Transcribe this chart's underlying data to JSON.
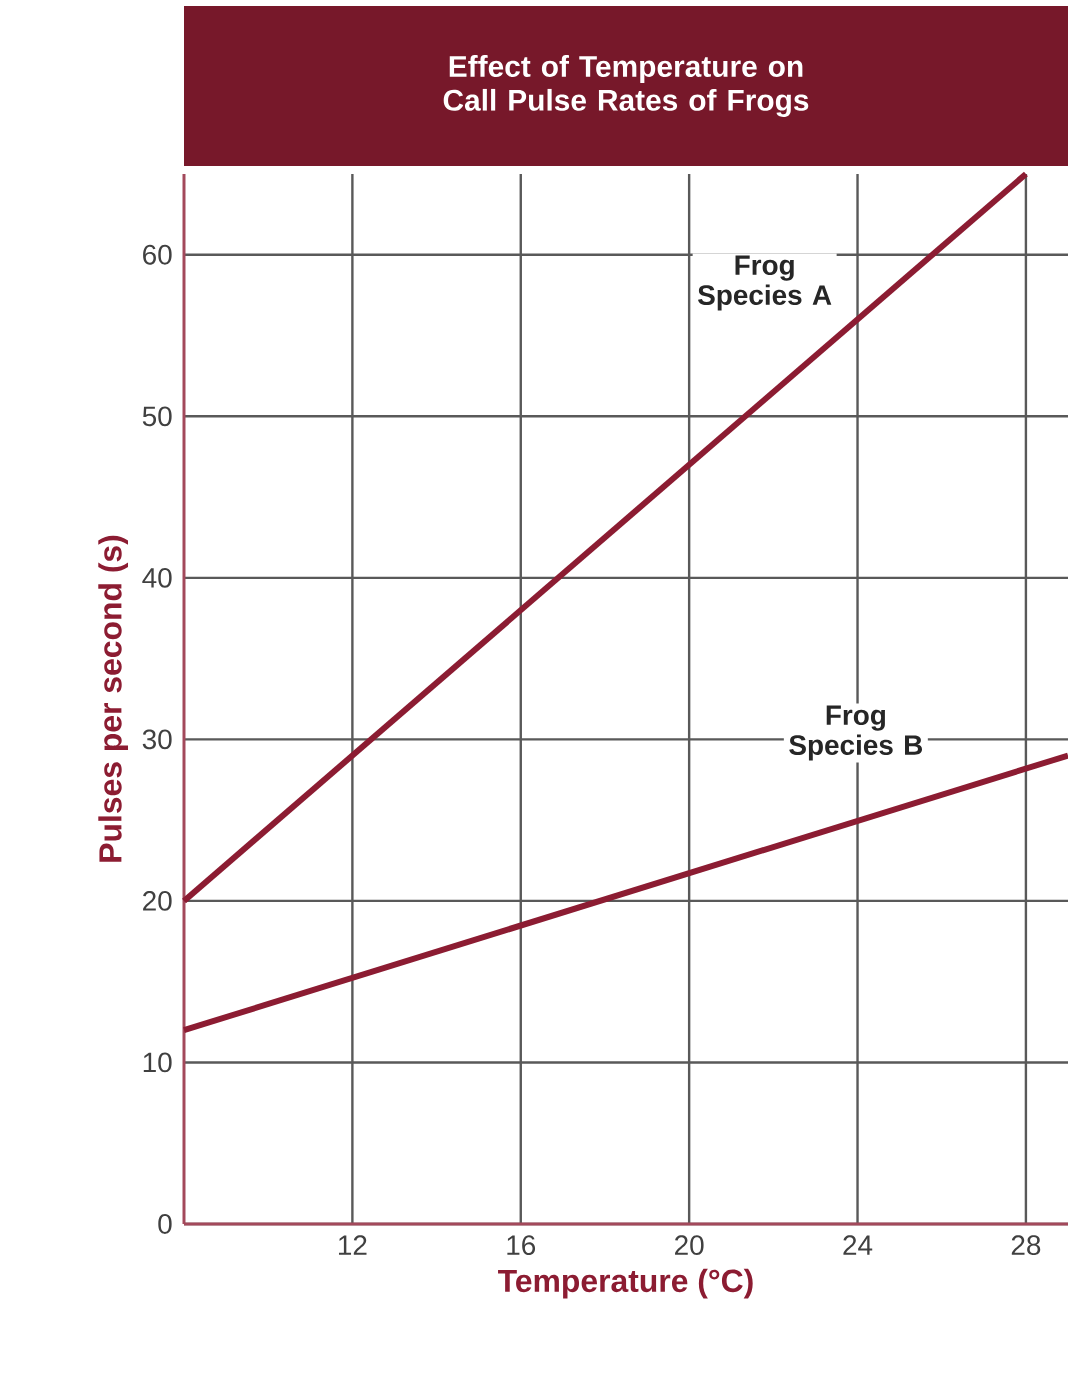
{
  "chart_data": {
    "type": "line",
    "title": "Effect of Temperature on Call Pulse Rates of Frogs",
    "xlabel": "Temperature (°C)",
    "ylabel": "Pulses per second (s)",
    "xlim": [
      8,
      29
    ],
    "ylim": [
      0,
      65
    ],
    "xticks": [
      12,
      16,
      20,
      24,
      28
    ],
    "yticks": [
      0,
      10,
      20,
      30,
      40,
      50,
      60
    ],
    "grid": true,
    "marker": "none",
    "line_style": "solid",
    "series": [
      {
        "name": "Frog Species A",
        "color": "#8c1c32",
        "x": [
          8,
          28
        ],
        "values": [
          20,
          65
        ]
      },
      {
        "name": "Frog Species B",
        "color": "#8c1c32",
        "x": [
          8,
          29
        ],
        "values": [
          12,
          29
        ]
      }
    ]
  }
}
